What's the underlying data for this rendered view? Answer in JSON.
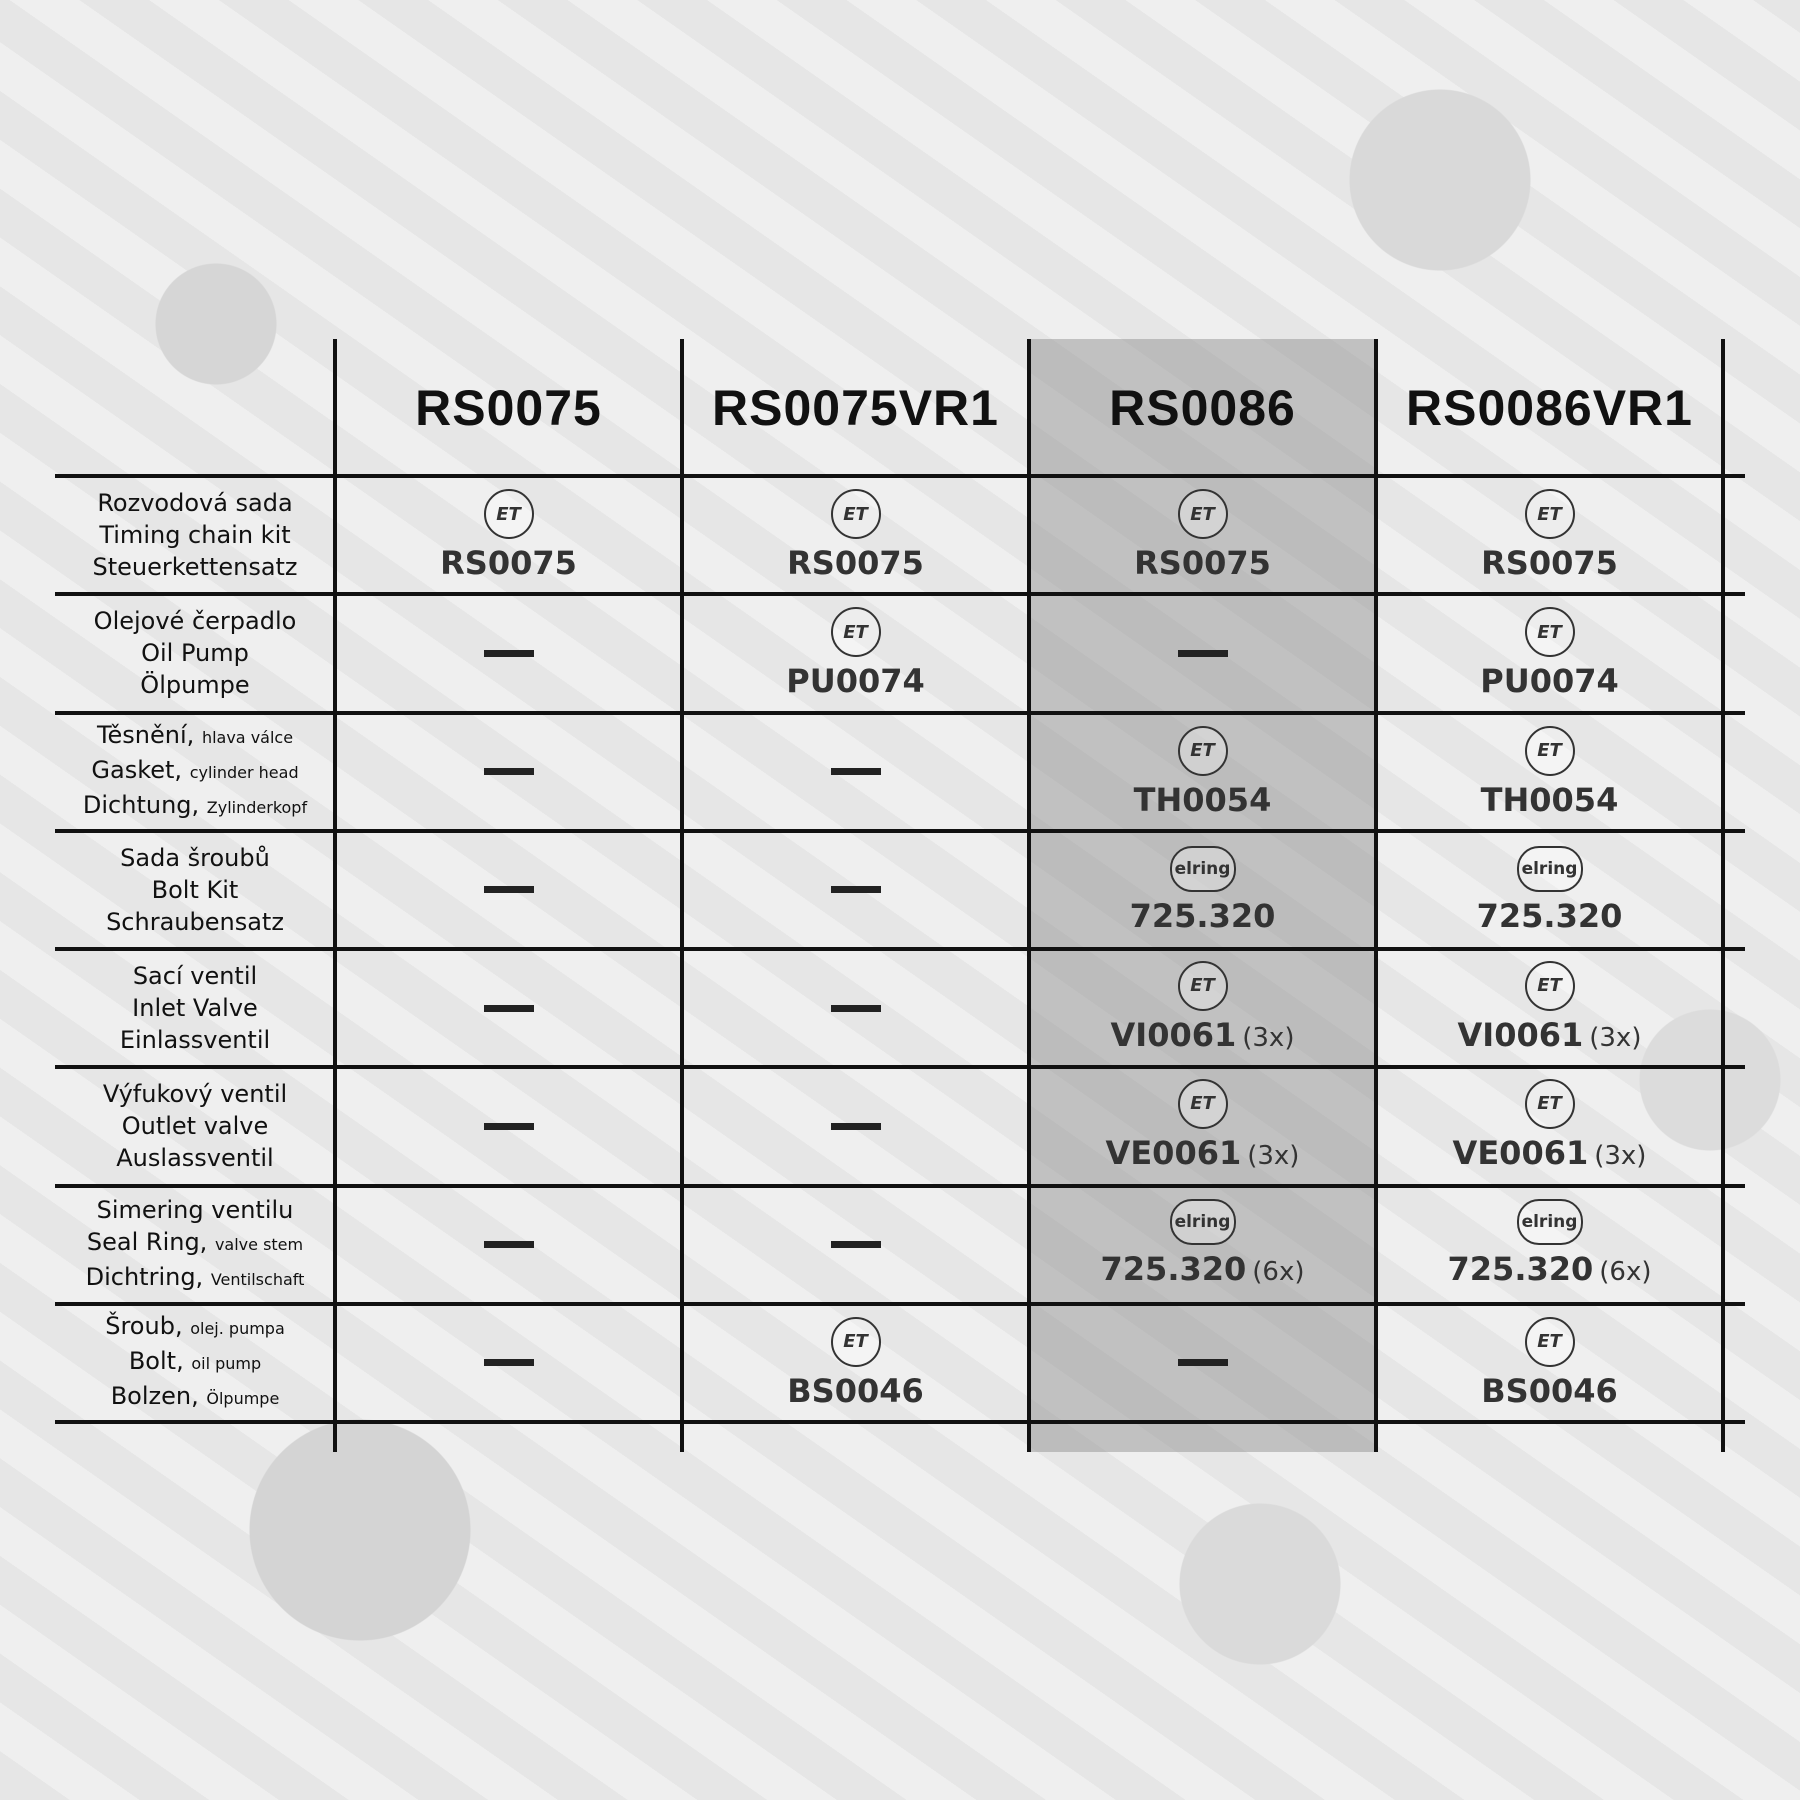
{
  "columns": [
    "RS0075",
    "RS0075VR1",
    "RS0086",
    "RS0086VR1"
  ],
  "highlighted_column": 2,
  "highlight_color": "#8a8a8a",
  "rows": [
    {
      "lines": [
        {
          "main": "Rozvodová sada",
          "sub": ""
        },
        {
          "main": "Timing chain kit",
          "sub": ""
        },
        {
          "main": "Steuerkettensatz",
          "sub": ""
        }
      ],
      "cells": [
        {
          "brand": "ET",
          "code": "RS0075",
          "qty": ""
        },
        {
          "brand": "ET",
          "code": "RS0075",
          "qty": ""
        },
        {
          "brand": "ET",
          "code": "RS0075",
          "qty": ""
        },
        {
          "brand": "ET",
          "code": "RS0075",
          "qty": ""
        }
      ]
    },
    {
      "lines": [
        {
          "main": "Olejové čerpadlo",
          "sub": ""
        },
        {
          "main": "Oil Pump",
          "sub": ""
        },
        {
          "main": "Ölpumpe",
          "sub": ""
        }
      ],
      "cells": [
        null,
        {
          "brand": "ET",
          "code": "PU0074",
          "qty": ""
        },
        null,
        {
          "brand": "ET",
          "code": "PU0074",
          "qty": ""
        }
      ]
    },
    {
      "lines": [
        {
          "main": "Těsnění,",
          "sub": "hlava válce"
        },
        {
          "main": "Gasket,",
          "sub": "cylinder head"
        },
        {
          "main": "Dichtung,",
          "sub": "Zylinderkopf"
        }
      ],
      "cells": [
        null,
        null,
        {
          "brand": "ET",
          "code": "TH0054",
          "qty": ""
        },
        {
          "brand": "ET",
          "code": "TH0054",
          "qty": ""
        }
      ]
    },
    {
      "lines": [
        {
          "main": "Sada šroubů",
          "sub": ""
        },
        {
          "main": "Bolt Kit",
          "sub": ""
        },
        {
          "main": "Schraubensatz",
          "sub": ""
        }
      ],
      "cells": [
        null,
        null,
        {
          "brand": "elring",
          "code": "725.320",
          "qty": ""
        },
        {
          "brand": "elring",
          "code": "725.320",
          "qty": ""
        }
      ]
    },
    {
      "lines": [
        {
          "main": "Sací ventil",
          "sub": ""
        },
        {
          "main": "Inlet Valve",
          "sub": ""
        },
        {
          "main": "Einlassventil",
          "sub": ""
        }
      ],
      "cells": [
        null,
        null,
        {
          "brand": "ET",
          "code": "VI0061",
          "qty": "(3x)"
        },
        {
          "brand": "ET",
          "code": "VI0061",
          "qty": "(3x)"
        }
      ]
    },
    {
      "lines": [
        {
          "main": "Výfukový ventil",
          "sub": ""
        },
        {
          "main": "Outlet valve",
          "sub": ""
        },
        {
          "main": "Auslassventil",
          "sub": ""
        }
      ],
      "cells": [
        null,
        null,
        {
          "brand": "ET",
          "code": "VE0061",
          "qty": "(3x)"
        },
        {
          "brand": "ET",
          "code": "VE0061",
          "qty": "(3x)"
        }
      ]
    },
    {
      "lines": [
        {
          "main": "Simering ventilu",
          "sub": ""
        },
        {
          "main": "Seal Ring,",
          "sub": "valve stem"
        },
        {
          "main": "Dichtring,",
          "sub": "Ventilschaft"
        }
      ],
      "cells": [
        null,
        null,
        {
          "brand": "elring",
          "code": "725.320",
          "qty": "(6x)"
        },
        {
          "brand": "elring",
          "code": "725.320",
          "qty": "(6x)"
        }
      ]
    },
    {
      "lines": [
        {
          "main": "Šroub,",
          "sub": "olej. pumpa"
        },
        {
          "main": "Bolt,",
          "sub": "oil pump"
        },
        {
          "main": "Bolzen,",
          "sub": "Ölpumpe"
        }
      ],
      "cells": [
        null,
        {
          "brand": "ET",
          "code": "BS0046",
          "qty": ""
        },
        null,
        {
          "brand": "ET",
          "code": "BS0046",
          "qty": ""
        }
      ]
    }
  ],
  "logos": {
    "ET": "ET",
    "elring": "elring"
  }
}
